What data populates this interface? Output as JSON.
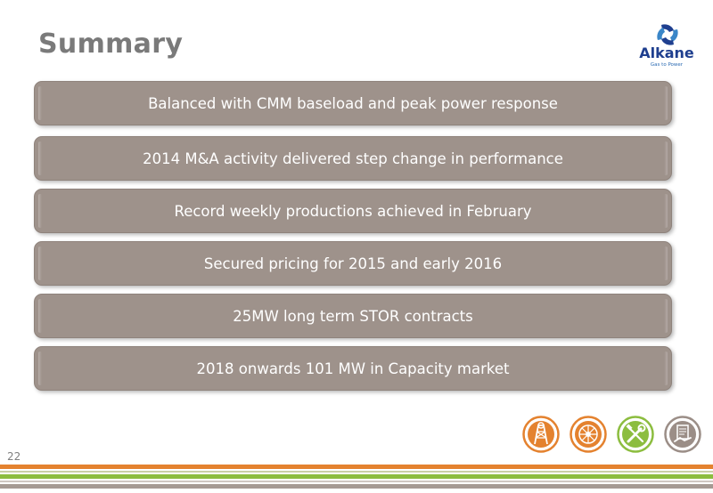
{
  "slide": {
    "title": "Summary",
    "page_number": "22"
  },
  "logo": {
    "name": "Alkane",
    "tagline": "Gas to Power"
  },
  "boxes": [
    "Balanced with CMM baseload and peak power response",
    "2014 M&A activity delivered step change in performance",
    "Record weekly productions achieved in February",
    "Secured pricing for 2015 and early 2016",
    "25MW long term STOR contracts",
    "2018 onwards 101 MW in Capacity market"
  ],
  "icons": [
    {
      "name": "mining-tower-icon",
      "color": "#e4822f"
    },
    {
      "name": "turbine-icon",
      "color": "#e4822f"
    },
    {
      "name": "tools-icon",
      "color": "#8cbd3f"
    },
    {
      "name": "contract-icon",
      "color": "#9b8e87"
    }
  ],
  "colors": {
    "title": "#7a7a7a",
    "box_fill": "#9e928b",
    "orange": "#e4822f",
    "green": "#8cbd3f",
    "grey": "#9b8e87"
  }
}
